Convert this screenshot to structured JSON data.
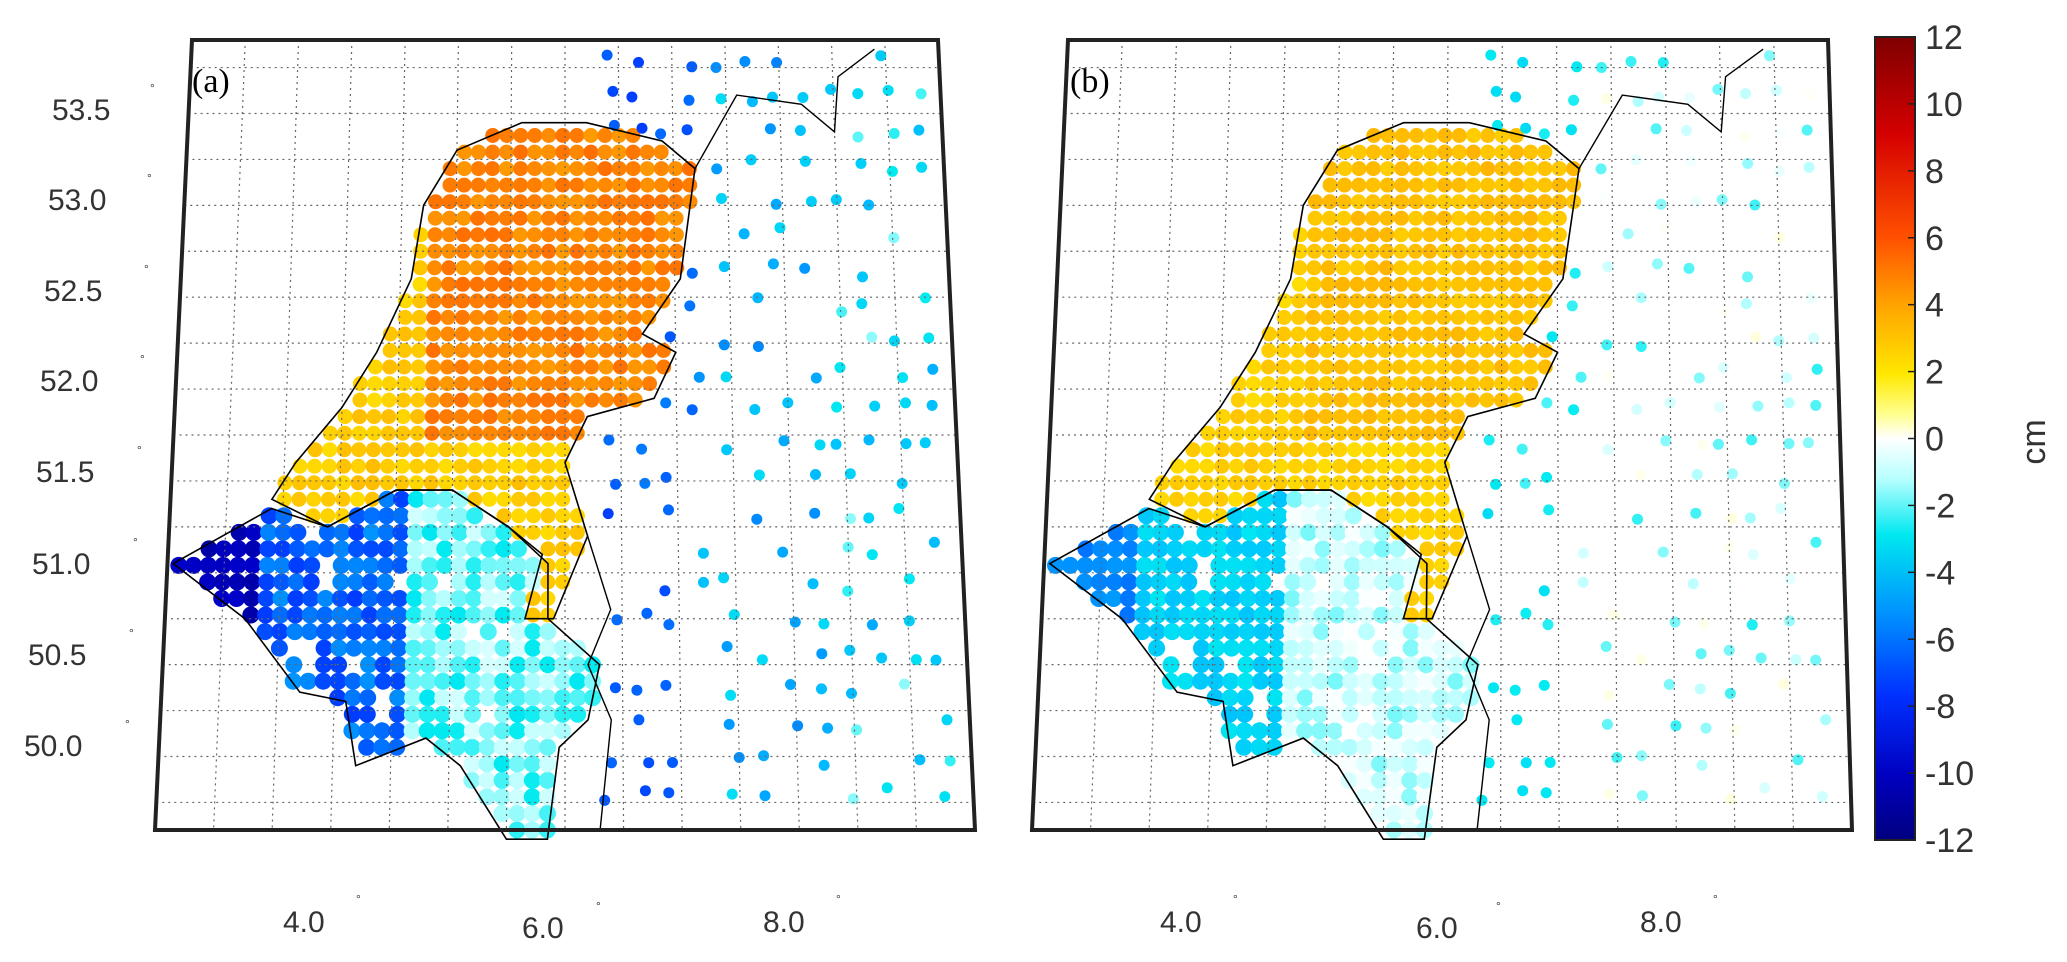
{
  "figure": {
    "panels": [
      {
        "label": "(a)"
      },
      {
        "label": "(b)"
      }
    ],
    "lat_ticks": [
      "53.5",
      "53.0",
      "52.5",
      "52.0",
      "51.5",
      "51.0",
      "50.5",
      "50.0"
    ],
    "lon_ticks": [
      "4.0",
      "6.0",
      "8.0"
    ],
    "degree_symbol": "°",
    "colorbar": {
      "unit": "cm",
      "tick_labels": [
        "12",
        "10",
        "8",
        "6",
        "4",
        "2",
        "0",
        "-2",
        "-4",
        "-6",
        "-8",
        "-10",
        "-12"
      ],
      "range": [
        -12,
        12
      ],
      "colormap": "jet-style: dark blue (-12) → blue → cyan → white (0) → yellow → orange → red → dark red (12)"
    }
  },
  "chart_data": {
    "type": "map",
    "title": "",
    "panels": [
      "(a)",
      "(b)"
    ],
    "lat_range": [
      49.6,
      53.9
    ],
    "lon_range": [
      2.5,
      9.5
    ],
    "lat_ticks": [
      53.5,
      53.0,
      52.5,
      52.0,
      51.5,
      51.0,
      50.5,
      50.0
    ],
    "lon_ticks": [
      4.0,
      6.0,
      8.0
    ],
    "colorbar": {
      "min": -12,
      "max": 12,
      "unit": "cm"
    },
    "regions_approx_cm": {
      "a": {
        "netherlands_north": 5,
        "netherlands_south": 3.5,
        "belgium_west": -11,
        "belgium_central": -7,
        "belgium_southeast": -2,
        "germany_west": -7,
        "germany_east": -5
      },
      "b": {
        "netherlands_north": 4,
        "netherlands_south": 3.5,
        "belgium_west": -6,
        "belgium_central": -3,
        "belgium_southeast": -1,
        "germany_west": -2,
        "germany_east": -1.5
      }
    },
    "colors": {
      "frame": "#222222",
      "coast": "#000000",
      "grid": "#666666"
    }
  }
}
